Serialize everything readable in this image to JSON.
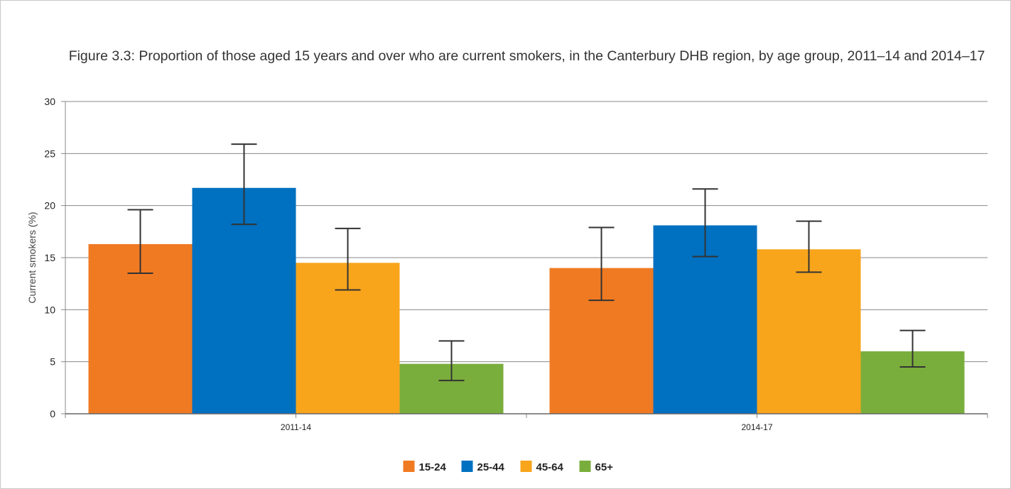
{
  "chart_data": {
    "type": "bar",
    "title": "Figure 3.3: Proportion of those aged 15 years and over who are current smokers, in the Canterbury DHB region, by age group, 2011–14 and 2014–17",
    "xlabel": "",
    "ylabel": "Current smokers (%)",
    "ylim": [
      0,
      30
    ],
    "yticks": [
      0,
      5,
      10,
      15,
      20,
      25,
      30
    ],
    "grid": true,
    "legend_position": "bottom",
    "categories": [
      "2011-14",
      "2014-17"
    ],
    "series": [
      {
        "name": "15-24",
        "color": "#f07a22",
        "values": [
          16.3,
          14.0
        ],
        "ci_low": [
          13.5,
          10.9
        ],
        "ci_high": [
          19.6,
          17.9
        ]
      },
      {
        "name": "25-44",
        "color": "#0070c0",
        "values": [
          21.7,
          18.1
        ],
        "ci_low": [
          18.2,
          15.1
        ],
        "ci_high": [
          25.9,
          21.6
        ]
      },
      {
        "name": "45-64",
        "color": "#f8a51c",
        "values": [
          14.5,
          15.8
        ],
        "ci_low": [
          11.9,
          13.6
        ],
        "ci_high": [
          17.8,
          18.5
        ]
      },
      {
        "name": "65+",
        "color": "#7aae3c",
        "values": [
          4.8,
          6.0
        ],
        "ci_low": [
          3.2,
          4.5
        ],
        "ci_high": [
          7.0,
          8.0
        ]
      }
    ]
  }
}
